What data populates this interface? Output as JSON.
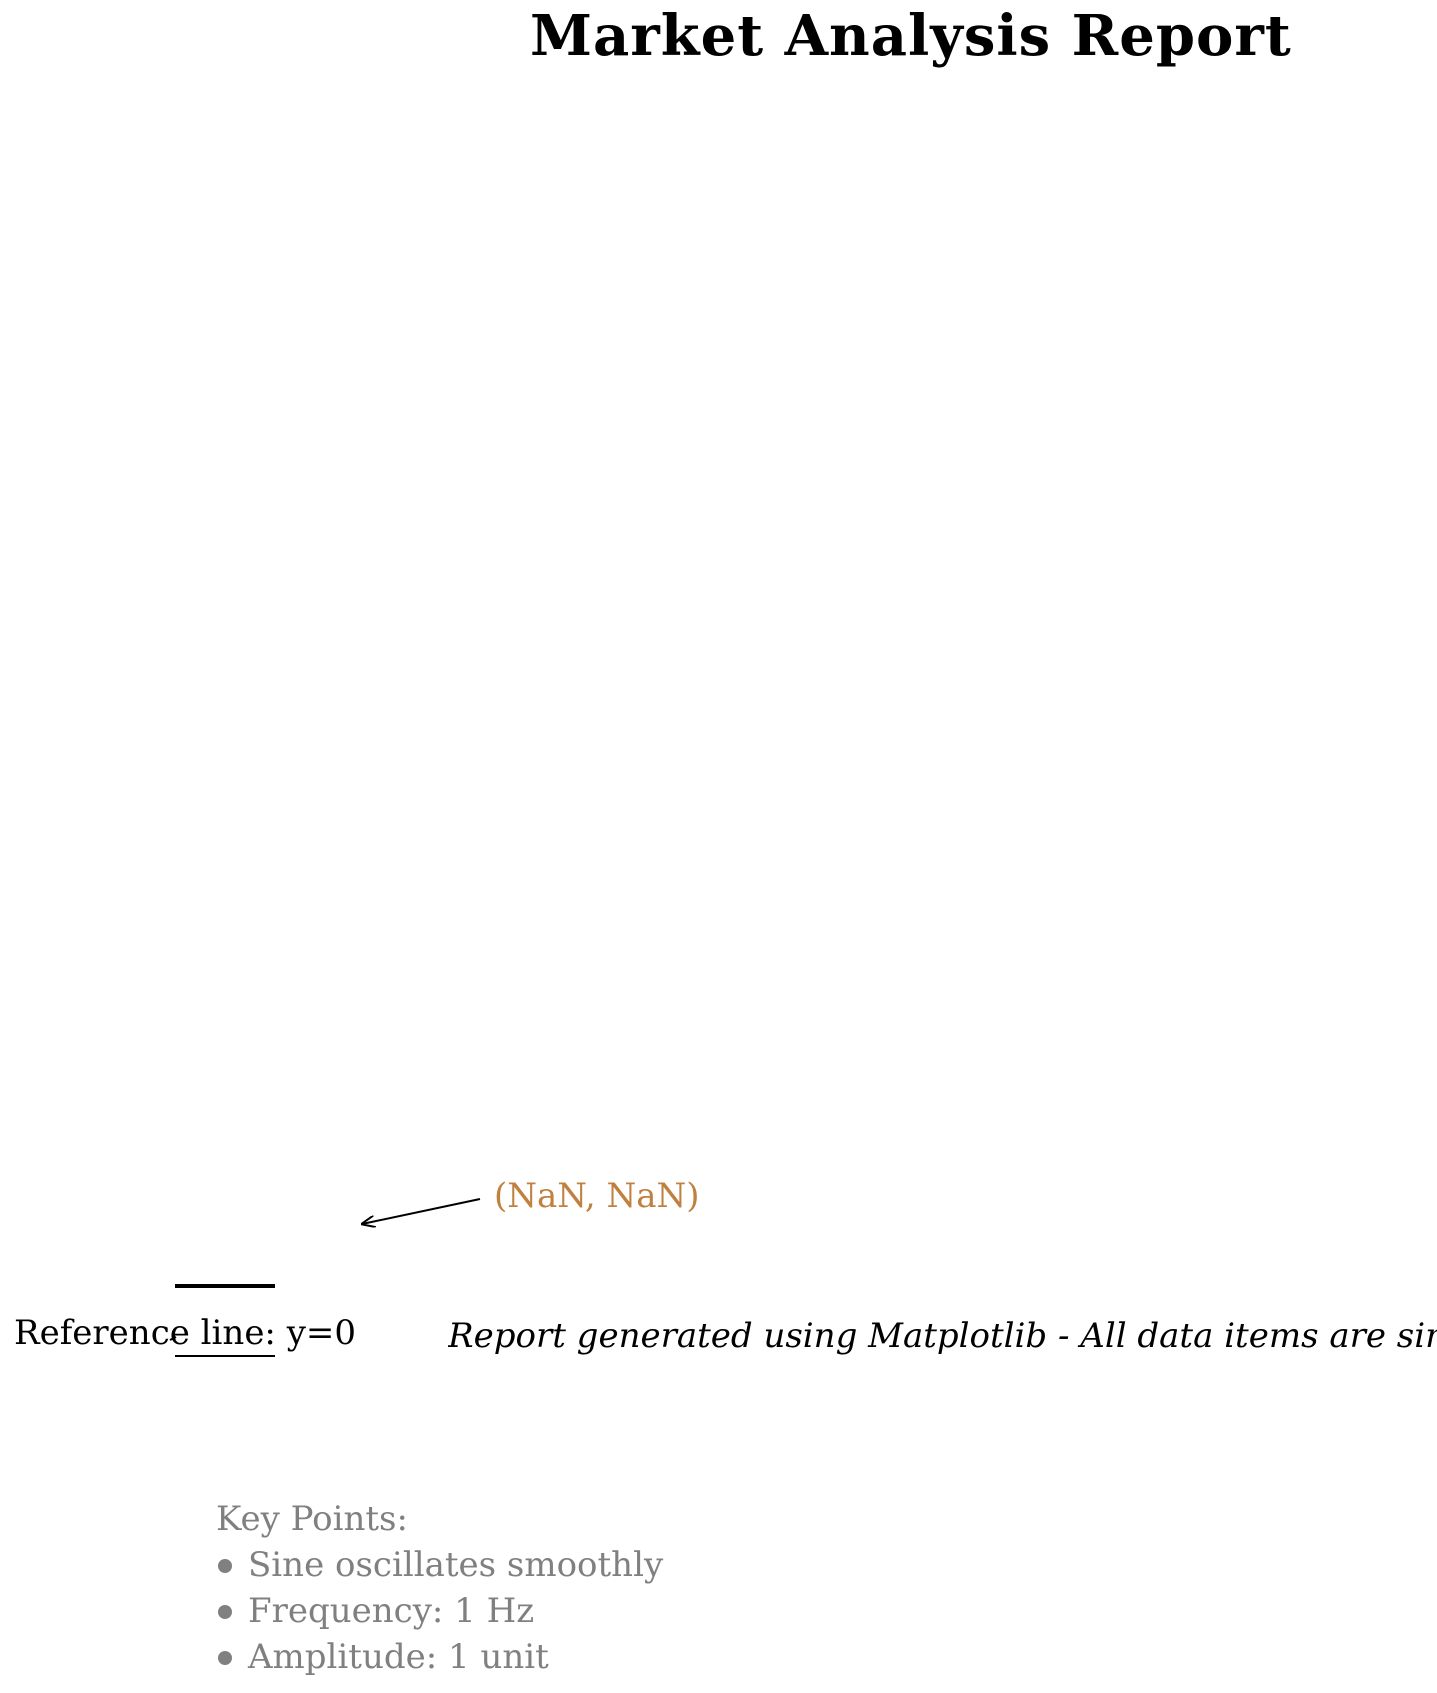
{
  "chart_data": {
    "type": "line",
    "title": "Market Analysis Report",
    "xlabel": "",
    "ylabel": "",
    "series": [],
    "annotation": {
      "text": "(NaN, NaN)",
      "color": "#c08040"
    },
    "reference_line": {
      "label": "Reference line: y=0",
      "y": 0
    },
    "grid": false
  },
  "footer_note": "Report generated using Matplotlib - All data items are simu",
  "key_points": {
    "title": "Key Points:",
    "items": [
      "Sine oscillates smoothly",
      "Frequency: 1 Hz",
      "Amplitude: 1 unit"
    ],
    "color": "#808080"
  }
}
